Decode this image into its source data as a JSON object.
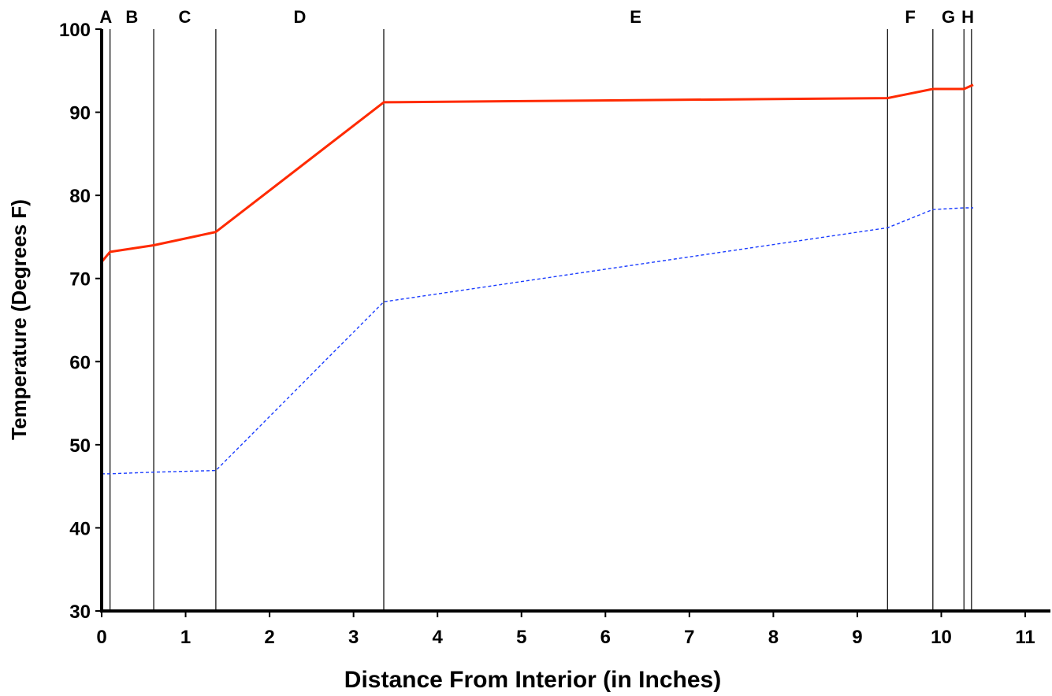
{
  "chart_data": {
    "type": "line",
    "xlabel": "Distance From Interior (in Inches)",
    "ylabel": "Temperature (Degrees F)",
    "xlim": [
      0,
      11.3
    ],
    "ylim": [
      30,
      100
    ],
    "x_ticks": [
      "0",
      "1",
      "2",
      "3",
      "4",
      "5",
      "6",
      "7",
      "8",
      "9",
      "10",
      "11"
    ],
    "y_ticks": [
      "30",
      "40",
      "50",
      "60",
      "70",
      "80",
      "90",
      "100"
    ],
    "zones": [
      {
        "label": "A",
        "start": 0,
        "end": 0.1
      },
      {
        "label": "B",
        "start": 0.1,
        "end": 0.62
      },
      {
        "label": "C",
        "start": 0.62,
        "end": 1.36
      },
      {
        "label": "D",
        "start": 1.36,
        "end": 3.36
      },
      {
        "label": "E",
        "start": 3.36,
        "end": 9.36
      },
      {
        "label": "F",
        "start": 9.36,
        "end": 9.9
      },
      {
        "label": "G",
        "start": 9.9,
        "end": 10.27
      },
      {
        "label": "H",
        "start": 10.27,
        "end": 10.36
      }
    ],
    "series": [
      {
        "color": "#ff2a00",
        "style": "solid",
        "x": [
          0,
          0.1,
          0.62,
          1.36,
          3.36,
          9.36,
          9.9,
          10.27,
          10.38
        ],
        "y": [
          72.0,
          73.2,
          74.0,
          75.6,
          91.2,
          91.7,
          92.8,
          92.8,
          93.3
        ]
      },
      {
        "color": "#1a3cff",
        "style": "dashed",
        "x": [
          0,
          0.1,
          0.62,
          1.36,
          3.36,
          9.36,
          9.9,
          10.27,
          10.38
        ],
        "y": [
          46.5,
          46.5,
          46.7,
          46.9,
          67.2,
          76.1,
          78.3,
          78.5,
          78.5
        ]
      }
    ]
  }
}
